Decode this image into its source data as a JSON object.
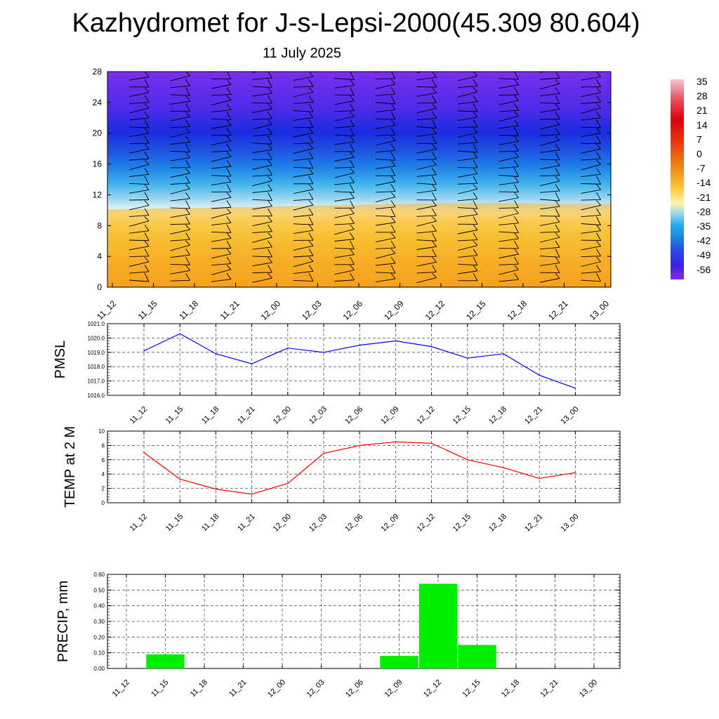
{
  "title": "Kazhydromet for J-s-Lepsi-2000(45.309 80.604)",
  "subtitle": "11 July 2025",
  "colorbar_labels": [
    "35",
    "28",
    "21",
    "14",
    "7",
    "0",
    "-7",
    "-14",
    "-21",
    "-28",
    "-35",
    "-42",
    "-49",
    "-56"
  ],
  "chart_data": [
    {
      "type": "heatmap",
      "title": "",
      "ylim": [
        0,
        28
      ],
      "yticks": [
        "0",
        "4",
        "8",
        "12",
        "16",
        "20",
        "24",
        "28"
      ],
      "categories": [
        "11_12",
        "11_15",
        "11_18",
        "11_21",
        "12_00",
        "12_03",
        "12_06",
        "12_09",
        "12_12",
        "12_15",
        "12_18",
        "12_21",
        "13_00"
      ],
      "freezing_level": [
        10.1,
        10.2,
        10.3,
        10.4,
        10.5,
        10.6,
        10.7,
        10.8,
        10.9,
        10.9,
        10.9,
        10.8,
        10.8
      ],
      "surface_temp_range": [
        0,
        10
      ],
      "upper_temp_range": [
        -56,
        -49
      ],
      "colorbar": {
        "min": -56,
        "max": 35,
        "step": 7
      }
    },
    {
      "type": "line",
      "ylabel": "PMSL",
      "ylim": [
        1016.0,
        1021.0
      ],
      "yticks": [
        "1016.0",
        "1017.0",
        "1018.0",
        "1019.0",
        "1020.0",
        "1021.0"
      ],
      "categories": [
        "11_12",
        "11_15",
        "11_18",
        "11_21",
        "12_00",
        "12_03",
        "12_06",
        "12_09",
        "12_12",
        "12_15",
        "12_18",
        "12_21",
        "13_00"
      ],
      "values": [
        1019.1,
        1020.3,
        1018.9,
        1018.2,
        1019.3,
        1019.0,
        1019.5,
        1019.8,
        1019.4,
        1018.6,
        1018.9,
        1017.4,
        1016.5
      ],
      "color": "#0000ff"
    },
    {
      "type": "line",
      "ylabel": "TEMP at 2 M",
      "ylim": [
        0,
        10
      ],
      "yticks": [
        "0",
        "2",
        "4",
        "6",
        "8",
        "10"
      ],
      "categories": [
        "11_12",
        "11_15",
        "11_18",
        "11_21",
        "12_00",
        "12_03",
        "12_06",
        "12_09",
        "12_12",
        "12_15",
        "12_18",
        "12_21",
        "13_00"
      ],
      "values": [
        7.0,
        3.3,
        1.9,
        1.2,
        2.7,
        6.9,
        8.0,
        8.5,
        8.3,
        6.0,
        4.9,
        3.4,
        4.2
      ],
      "color": "#ff0000"
    },
    {
      "type": "bar",
      "ylabel": "PRECIP, mm",
      "ylim": [
        0,
        0.6
      ],
      "yticks": [
        "0.00",
        "0.10",
        "0.20",
        "0.30",
        "0.40",
        "0.50",
        "0.60"
      ],
      "categories": [
        "11_12",
        "11_15",
        "11_18",
        "11_21",
        "12_00",
        "12_03",
        "12_06",
        "12_09",
        "12_12",
        "12_15",
        "12_18",
        "12_21",
        "13_00"
      ],
      "values": [
        0,
        0.09,
        0,
        0,
        0,
        0,
        0,
        0.08,
        0.54,
        0.15,
        0,
        0,
        0
      ],
      "color": "#00ee00"
    }
  ]
}
